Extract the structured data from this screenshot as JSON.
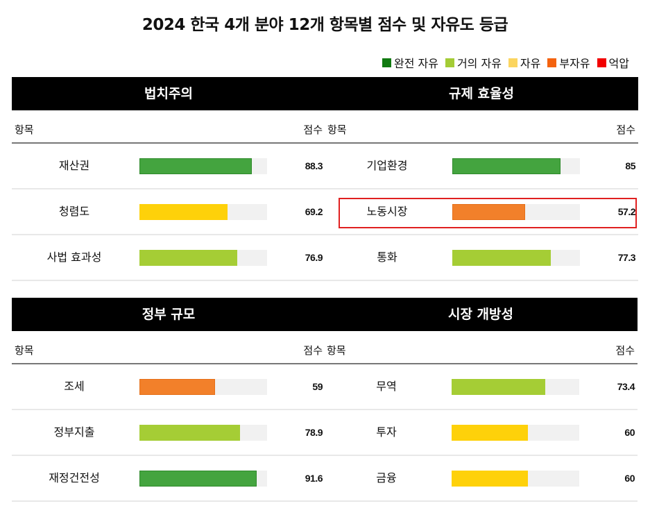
{
  "title": "2024 한국 4개 분야 12개 항목별 점수 및 자유도 등급",
  "legend": [
    {
      "label": "완전 자유",
      "color": "#117a11"
    },
    {
      "label": "거의 자유",
      "color": "#a4cc36"
    },
    {
      "label": "자유",
      "color": "#fbd55f"
    },
    {
      "label": "부자유",
      "color": "#f4630f"
    },
    {
      "label": "억압",
      "color": "#f20000"
    }
  ],
  "col_headers": {
    "item": "항목",
    "score": "점수"
  },
  "panels": [
    {
      "title": "법치주의",
      "rows": [
        {
          "label": "재산권",
          "score": "88.3",
          "value": 88.3,
          "color": "#44a43f",
          "border": "#2e8a2a"
        },
        {
          "label": "청렴도",
          "score": "69.2",
          "value": 69.2,
          "color": "#fed10a",
          "border": "#fed10a"
        },
        {
          "label": "사법 효과성",
          "score": "76.9",
          "value": 76.9,
          "color": "#a5cd35",
          "border": "#a5cd35"
        }
      ]
    },
    {
      "title": "규제 효율성",
      "rows": [
        {
          "label": "기업환경",
          "score": "85",
          "value": 85,
          "color": "#44a43f",
          "border": "#2e8a2a"
        },
        {
          "label": "노동시장",
          "score": "57.2",
          "value": 57.2,
          "color": "#f2802a",
          "border": "#e5701a"
        },
        {
          "label": "통화",
          "score": "77.3",
          "value": 77.3,
          "color": "#a5cd35",
          "border": "#a5cd35"
        }
      ]
    },
    {
      "title": "정부 규모",
      "rows": [
        {
          "label": "조세",
          "score": "59",
          "value": 59,
          "color": "#f2802a",
          "border": "#e5701a"
        },
        {
          "label": "정부지출",
          "score": "78.9",
          "value": 78.9,
          "color": "#a5cd35",
          "border": "#a5cd35"
        },
        {
          "label": "재정건전성",
          "score": "91.6",
          "value": 91.6,
          "color": "#44a43f",
          "border": "#2e8a2a"
        }
      ]
    },
    {
      "title": "시장 개방성",
      "rows": [
        {
          "label": "무역",
          "score": "73.4",
          "value": 73.4,
          "color": "#a5cd35",
          "border": "#a5cd35"
        },
        {
          "label": "투자",
          "score": "60",
          "value": 60,
          "color": "#fed10a",
          "border": "#fed10a"
        },
        {
          "label": "금융",
          "score": "60",
          "value": 60,
          "color": "#fed10a",
          "border": "#fed10a"
        }
      ]
    }
  ],
  "highlighted_item": "노동시장",
  "chart_data": {
    "type": "bar",
    "orientation": "horizontal",
    "title": "2024 한국 4개 분야 12개 항목별 점수 및 자유도 등급",
    "xlim": [
      0,
      100
    ],
    "legend": [
      "완전 자유",
      "거의 자유",
      "자유",
      "부자유",
      "억압"
    ],
    "legend_position": "top-right",
    "groups": [
      {
        "name": "법치주의",
        "categories": [
          "재산권",
          "청렴도",
          "사법 효과성"
        ],
        "values": [
          88.3,
          69.2,
          76.9
        ],
        "grades": [
          "완전 자유",
          "자유",
          "거의 자유"
        ]
      },
      {
        "name": "규제 효율성",
        "categories": [
          "기업환경",
          "노동시장",
          "통화"
        ],
        "values": [
          85,
          57.2,
          77.3
        ],
        "grades": [
          "완전 자유",
          "부자유",
          "거의 자유"
        ]
      },
      {
        "name": "정부 규모",
        "categories": [
          "조세",
          "정부지출",
          "재정건전성"
        ],
        "values": [
          59,
          78.9,
          91.6
        ],
        "grades": [
          "부자유",
          "거의 자유",
          "완전 자유"
        ]
      },
      {
        "name": "시장 개방성",
        "categories": [
          "무역",
          "투자",
          "금융"
        ],
        "values": [
          73.4,
          60,
          60
        ],
        "grades": [
          "거의 자유",
          "자유",
          "자유"
        ]
      }
    ],
    "annotations": [
      "노동시장 row outlined in red"
    ]
  }
}
